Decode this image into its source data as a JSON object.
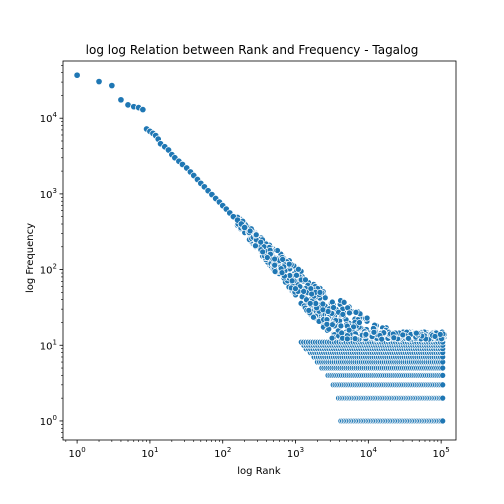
{
  "chart_data": {
    "type": "scatter",
    "title": "log log Relation between Rank and Frequency - Tagalog",
    "xlabel": "log Rank",
    "ylabel": "log Frequency",
    "xscale": "log",
    "yscale": "log",
    "xlim": [
      0.64,
      160000
    ],
    "ylim": [
      0.56,
      57000
    ],
    "x_ticks": [
      {
        "value": 1,
        "base": "10",
        "exp": "0"
      },
      {
        "value": 10,
        "base": "10",
        "exp": "1"
      },
      {
        "value": 100,
        "base": "10",
        "exp": "2"
      },
      {
        "value": 1000,
        "base": "10",
        "exp": "3"
      },
      {
        "value": 10000,
        "base": "10",
        "exp": "4"
      },
      {
        "value": 100000,
        "base": "10",
        "exp": "5"
      }
    ],
    "y_ticks": [
      {
        "value": 1,
        "base": "10",
        "exp": "0"
      },
      {
        "value": 10,
        "base": "10",
        "exp": "1"
      },
      {
        "value": 100,
        "base": "10",
        "exp": "2"
      },
      {
        "value": 1000,
        "base": "10",
        "exp": "3"
      },
      {
        "value": 10000,
        "base": "10",
        "exp": "4"
      }
    ],
    "marker_color": "#1f77b4",
    "marker_edge_color": "#ffffff",
    "grid": false,
    "legend": "none",
    "head_points": [
      [
        1,
        37000
      ],
      [
        2,
        30500
      ],
      [
        3,
        27000
      ],
      [
        4,
        17500
      ],
      [
        5,
        15000
      ],
      [
        6,
        14200
      ],
      [
        7,
        13800
      ],
      [
        8,
        13000
      ],
      [
        9,
        7200
      ],
      [
        10,
        6700
      ],
      [
        11,
        6300
      ],
      [
        12,
        5900
      ],
      [
        13,
        5300
      ],
      [
        14,
        4600
      ],
      [
        16,
        4200
      ],
      [
        18,
        3800
      ],
      [
        20,
        3300
      ],
      [
        22,
        3000
      ],
      [
        25,
        2700
      ],
      [
        28,
        2450
      ],
      [
        32,
        2200
      ],
      [
        36,
        1950
      ],
      [
        40,
        1750
      ],
      [
        45,
        1550
      ],
      [
        50,
        1380
      ],
      [
        56,
        1240
      ],
      [
        63,
        1100
      ],
      [
        71,
        980
      ],
      [
        80,
        870
      ],
      [
        90,
        780
      ],
      [
        100,
        700
      ],
      [
        112,
        630
      ],
      [
        125,
        560
      ],
      [
        140,
        500
      ],
      [
        160,
        450
      ],
      [
        180,
        400
      ],
      [
        200,
        360
      ]
    ],
    "tail_levels": [
      {
        "freq": 1,
        "start_rank": 4200,
        "end_rank": 105000
      },
      {
        "freq": 2,
        "start_rank": 3900,
        "end_rank": 105000
      },
      {
        "freq": 3,
        "start_rank": 3300,
        "end_rank": 105000
      },
      {
        "freq": 4,
        "start_rank": 2800,
        "end_rank": 105000
      },
      {
        "freq": 5,
        "start_rank": 2300,
        "end_rank": 105000
      },
      {
        "freq": 6,
        "start_rank": 2000,
        "end_rank": 105000
      },
      {
        "freq": 7,
        "start_rank": 1800,
        "end_rank": 105000
      },
      {
        "freq": 8,
        "start_rank": 1600,
        "end_rank": 105000
      },
      {
        "freq": 9,
        "start_rank": 1400,
        "end_rank": 105000
      },
      {
        "freq": 10,
        "start_rank": 1300,
        "end_rank": 105000
      },
      {
        "freq": 11,
        "start_rank": 1200,
        "end_rank": 105000
      }
    ]
  }
}
